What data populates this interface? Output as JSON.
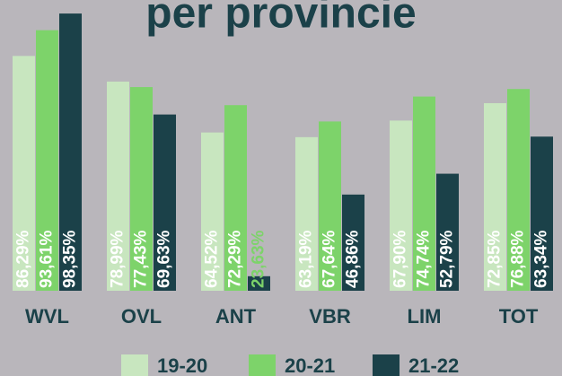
{
  "chart_data": {
    "type": "bar",
    "title": "per provincie",
    "categories": [
      "WVL",
      "OVL",
      "ANT",
      "VBR",
      "LIM",
      "TOT"
    ],
    "series": [
      {
        "name": "19-20",
        "color": "#c8e6bf",
        "values": [
          86.29,
          78.99,
          64.52,
          63.19,
          67.9,
          72.85
        ],
        "value_labels": [
          "86,29%",
          "78,99%",
          "64,52%",
          "63,19%",
          "67,90%",
          "72,85%"
        ]
      },
      {
        "name": "20-21",
        "color": "#7dd36a",
        "values": [
          93.61,
          77.43,
          72.29,
          67.64,
          74.74,
          76.88
        ],
        "value_labels": [
          "93,61%",
          "77,43%",
          "72,29%",
          "67,64%",
          "74,74%",
          "76,88%"
        ]
      },
      {
        "name": "21-22",
        "color": "#1b4149",
        "values": [
          98.35,
          69.63,
          23.63,
          46.86,
          52.79,
          63.34
        ],
        "value_labels": [
          "98,35%",
          "69,63%",
          "23,63%",
          "46,86%",
          "52,79%",
          "63,34%"
        ]
      }
    ],
    "ylim": [
      19.5,
      102.2
    ]
  }
}
